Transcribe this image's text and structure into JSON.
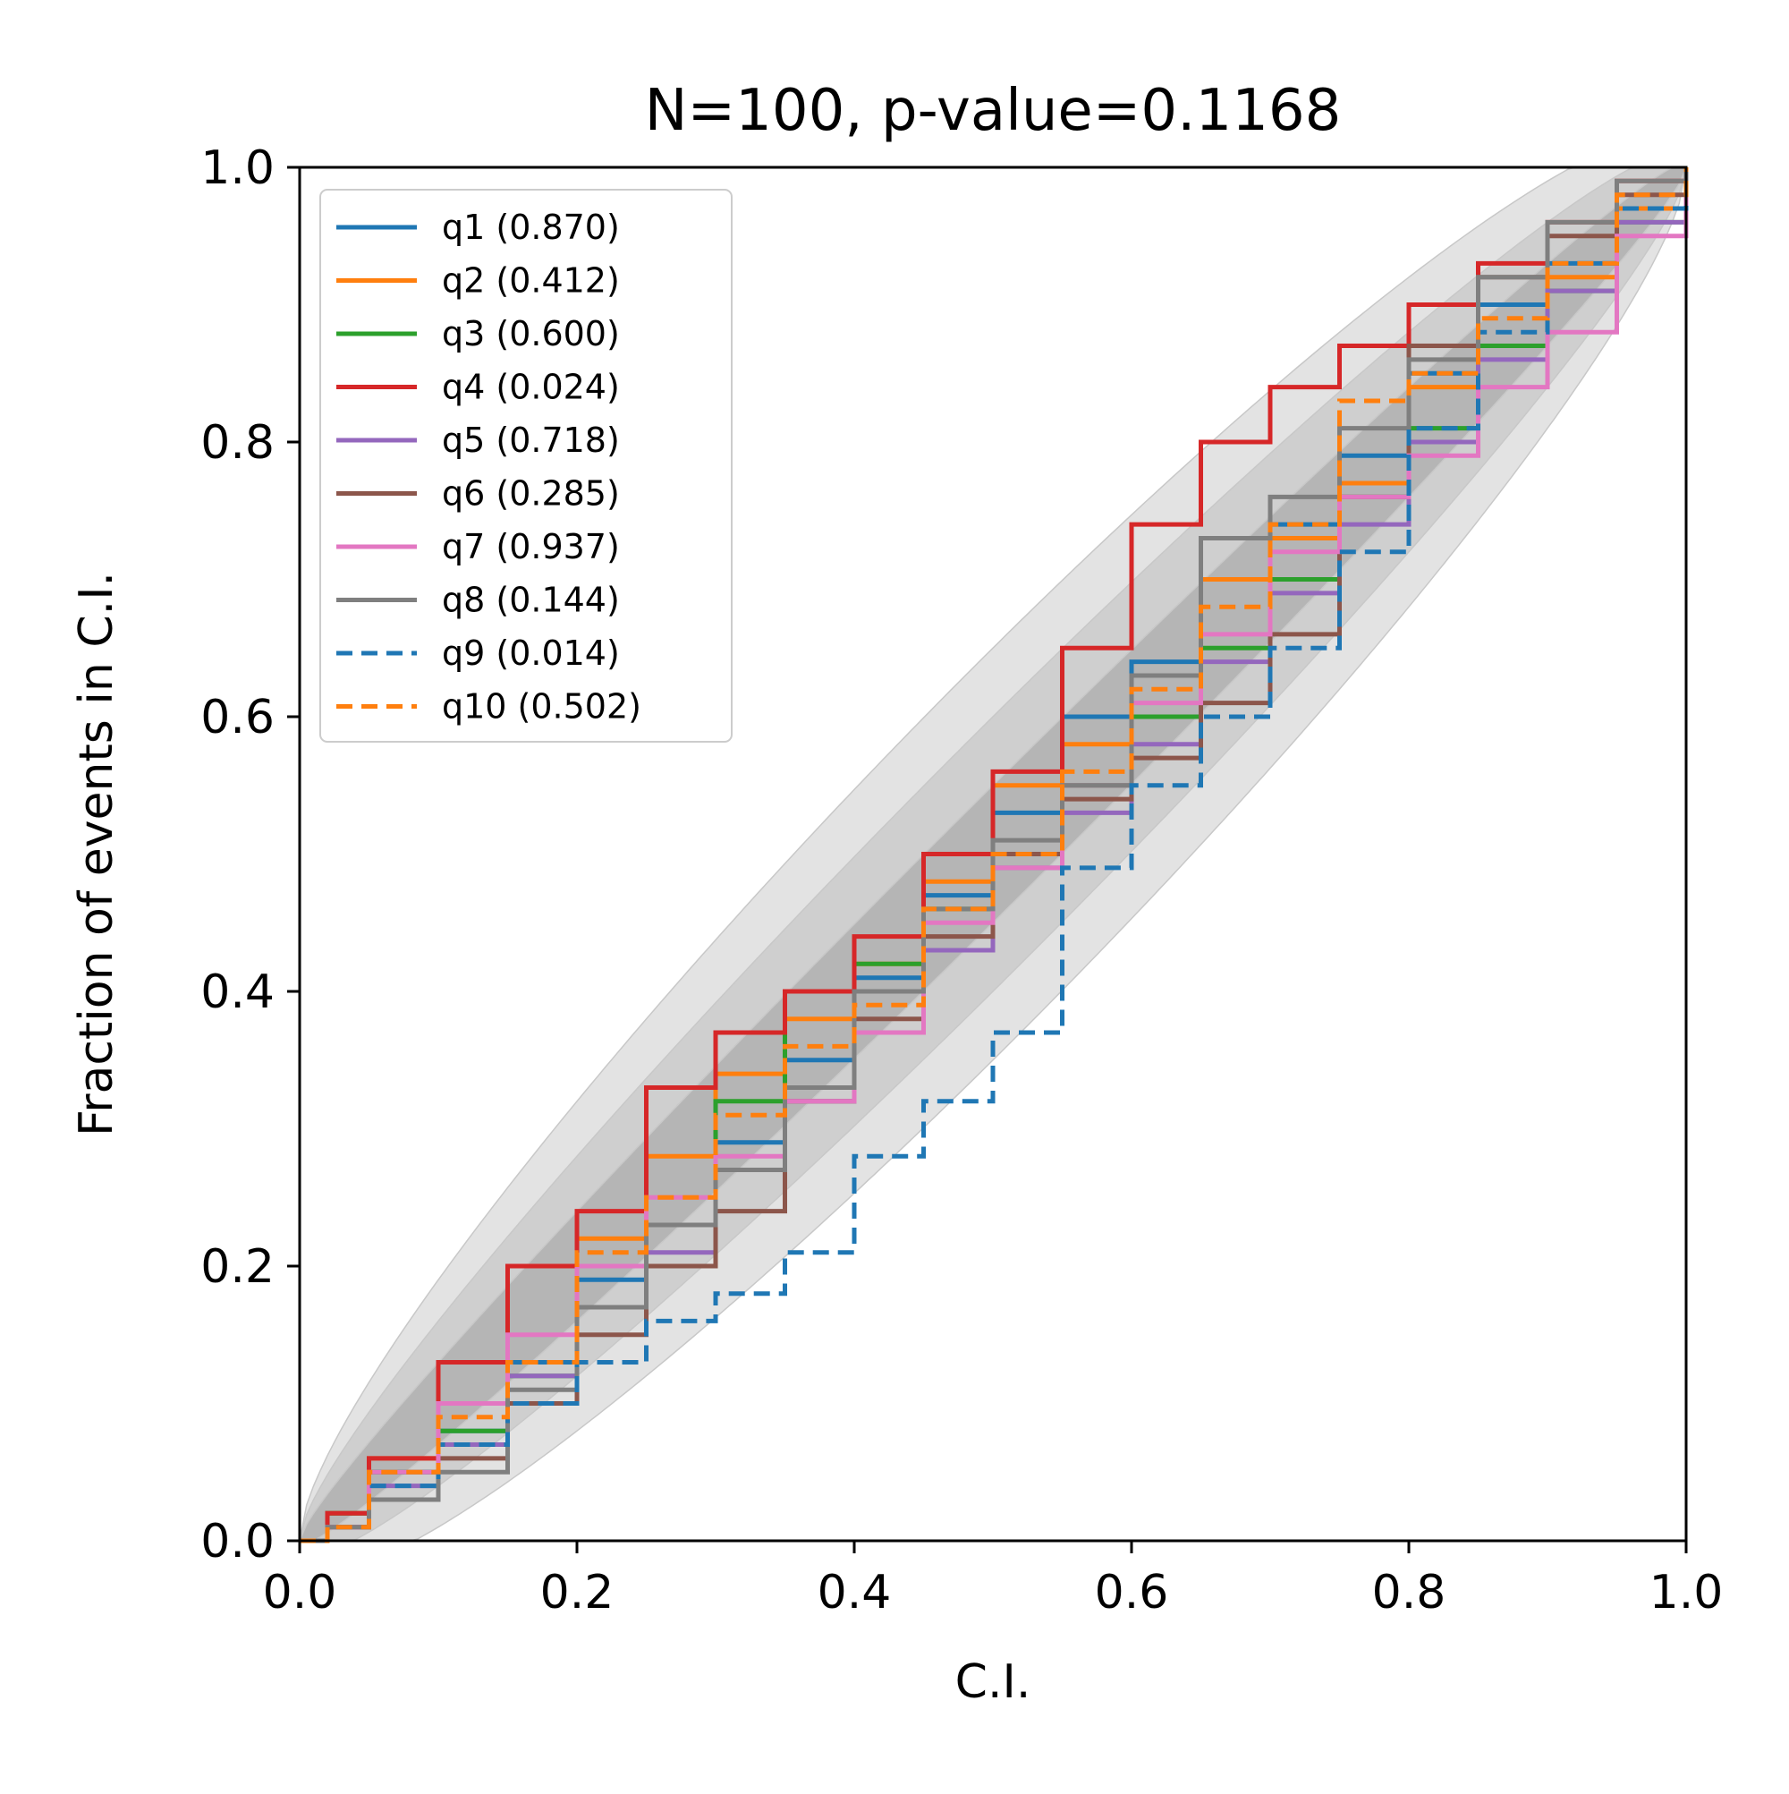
{
  "chart_data": {
    "type": "line",
    "title": "N=100, p-value=0.1168",
    "xlabel": "C.I.",
    "ylabel": "Fraction of events in C.I.",
    "xlim": [
      0.0,
      1.0
    ],
    "ylim": [
      0.0,
      1.0
    ],
    "x_ticks": [
      "0.0",
      "0.2",
      "0.4",
      "0.6",
      "0.8",
      "1.0"
    ],
    "y_ticks": [
      "0.0",
      "0.2",
      "0.4",
      "0.6",
      "0.8",
      "1.0"
    ],
    "grid": false,
    "legend_position": "upper-left",
    "confidence_bands": [
      {
        "sigma": 1,
        "color": "#b5b5b5"
      },
      {
        "sigma": 2,
        "color": "#cfcfcf"
      },
      {
        "sigma": 3,
        "color": "#e3e3e3"
      }
    ],
    "series": [
      {
        "name": "q1 (0.870)",
        "color": "#1f77b4",
        "dash": "solid",
        "x": [
          0,
          0.02,
          0.05,
          0.1,
          0.15,
          0.2,
          0.25,
          0.3,
          0.35,
          0.4,
          0.45,
          0.5,
          0.55,
          0.6,
          0.65,
          0.7,
          0.75,
          0.8,
          0.85,
          0.9,
          0.95,
          1.0
        ],
        "y": [
          0,
          0.02,
          0.05,
          0.08,
          0.13,
          0.19,
          0.23,
          0.29,
          0.35,
          0.41,
          0.47,
          0.53,
          0.6,
          0.64,
          0.7,
          0.74,
          0.79,
          0.85,
          0.9,
          0.93,
          0.97,
          1.0
        ]
      },
      {
        "name": "q2 (0.412)",
        "color": "#ff7f0e",
        "dash": "solid",
        "x": [
          0,
          0.02,
          0.05,
          0.1,
          0.15,
          0.2,
          0.25,
          0.3,
          0.35,
          0.4,
          0.45,
          0.5,
          0.55,
          0.6,
          0.65,
          0.7,
          0.75,
          0.8,
          0.85,
          0.9,
          0.95,
          1.0
        ],
        "y": [
          0,
          0.02,
          0.06,
          0.1,
          0.2,
          0.22,
          0.28,
          0.34,
          0.38,
          0.42,
          0.48,
          0.55,
          0.58,
          0.63,
          0.7,
          0.73,
          0.77,
          0.84,
          0.87,
          0.92,
          0.97,
          1.0
        ]
      },
      {
        "name": "q3 (0.600)",
        "color": "#2ca02c",
        "dash": "solid",
        "x": [
          0,
          0.02,
          0.05,
          0.1,
          0.15,
          0.2,
          0.25,
          0.3,
          0.35,
          0.4,
          0.45,
          0.5,
          0.55,
          0.6,
          0.65,
          0.7,
          0.75,
          0.8,
          0.85,
          0.9,
          0.95,
          1.0
        ],
        "y": [
          0,
          0.02,
          0.05,
          0.08,
          0.12,
          0.17,
          0.23,
          0.32,
          0.4,
          0.42,
          0.46,
          0.5,
          0.55,
          0.6,
          0.65,
          0.7,
          0.76,
          0.81,
          0.87,
          0.91,
          0.96,
          1.0
        ]
      },
      {
        "name": "q4 (0.024)",
        "color": "#d62728",
        "dash": "solid",
        "x": [
          0,
          0.02,
          0.05,
          0.1,
          0.15,
          0.2,
          0.25,
          0.3,
          0.35,
          0.4,
          0.45,
          0.5,
          0.55,
          0.6,
          0.65,
          0.7,
          0.75,
          0.8,
          0.85,
          0.9,
          0.95,
          1.0
        ],
        "y": [
          0,
          0.02,
          0.06,
          0.13,
          0.2,
          0.24,
          0.33,
          0.37,
          0.4,
          0.44,
          0.5,
          0.56,
          0.65,
          0.74,
          0.8,
          0.84,
          0.87,
          0.9,
          0.93,
          0.96,
          0.99,
          1.0
        ]
      },
      {
        "name": "q5 (0.718)",
        "color": "#9467bd",
        "dash": "solid",
        "x": [
          0,
          0.02,
          0.05,
          0.1,
          0.15,
          0.2,
          0.25,
          0.3,
          0.35,
          0.4,
          0.45,
          0.5,
          0.55,
          0.6,
          0.65,
          0.7,
          0.75,
          0.8,
          0.85,
          0.9,
          0.95,
          1.0
        ],
        "y": [
          0,
          0.01,
          0.04,
          0.07,
          0.12,
          0.17,
          0.21,
          0.27,
          0.32,
          0.37,
          0.43,
          0.49,
          0.53,
          0.58,
          0.64,
          0.69,
          0.74,
          0.8,
          0.86,
          0.91,
          0.96,
          1.0
        ]
      },
      {
        "name": "q6 (0.285)",
        "color": "#8c564b",
        "dash": "solid",
        "x": [
          0,
          0.02,
          0.05,
          0.1,
          0.15,
          0.2,
          0.25,
          0.3,
          0.35,
          0.4,
          0.45,
          0.5,
          0.55,
          0.6,
          0.65,
          0.7,
          0.75,
          0.8,
          0.85,
          0.9,
          0.95,
          1.0
        ],
        "y": [
          0,
          0.01,
          0.03,
          0.06,
          0.1,
          0.15,
          0.2,
          0.24,
          0.32,
          0.38,
          0.44,
          0.5,
          0.54,
          0.57,
          0.61,
          0.66,
          0.76,
          0.87,
          0.92,
          0.95,
          0.98,
          1.0
        ]
      },
      {
        "name": "q7 (0.937)",
        "color": "#e377c2",
        "dash": "solid",
        "x": [
          0,
          0.02,
          0.05,
          0.1,
          0.15,
          0.2,
          0.25,
          0.3,
          0.35,
          0.4,
          0.45,
          0.5,
          0.55,
          0.6,
          0.65,
          0.7,
          0.75,
          0.8,
          0.85,
          0.9,
          0.95,
          1.0
        ],
        "y": [
          0,
          0.01,
          0.05,
          0.1,
          0.15,
          0.2,
          0.25,
          0.28,
          0.32,
          0.37,
          0.45,
          0.49,
          0.55,
          0.61,
          0.66,
          0.72,
          0.76,
          0.79,
          0.84,
          0.88,
          0.95,
          1.0
        ]
      },
      {
        "name": "q8 (0.144)",
        "color": "#7f7f7f",
        "dash": "solid",
        "x": [
          0,
          0.02,
          0.05,
          0.1,
          0.15,
          0.2,
          0.25,
          0.3,
          0.35,
          0.4,
          0.45,
          0.5,
          0.55,
          0.6,
          0.65,
          0.7,
          0.75,
          0.8,
          0.85,
          0.9,
          0.95,
          1.0
        ],
        "y": [
          0,
          0.01,
          0.03,
          0.05,
          0.11,
          0.17,
          0.23,
          0.27,
          0.33,
          0.4,
          0.46,
          0.51,
          0.55,
          0.63,
          0.73,
          0.76,
          0.81,
          0.86,
          0.92,
          0.96,
          0.99,
          1.0
        ]
      },
      {
        "name": "q9 (0.014)",
        "color": "#1f77b4",
        "dash": "dashed",
        "x": [
          0,
          0.02,
          0.05,
          0.1,
          0.15,
          0.2,
          0.25,
          0.3,
          0.35,
          0.4,
          0.45,
          0.5,
          0.55,
          0.6,
          0.65,
          0.7,
          0.75,
          0.8,
          0.85,
          0.9,
          0.95,
          1.0
        ],
        "y": [
          0,
          0.01,
          0.04,
          0.07,
          0.1,
          0.13,
          0.16,
          0.18,
          0.21,
          0.28,
          0.32,
          0.37,
          0.49,
          0.55,
          0.6,
          0.65,
          0.72,
          0.81,
          0.88,
          0.93,
          0.97,
          1.0
        ]
      },
      {
        "name": "q10 (0.502)",
        "color": "#ff7f0e",
        "dash": "dashed",
        "x": [
          0,
          0.02,
          0.05,
          0.1,
          0.15,
          0.2,
          0.25,
          0.3,
          0.35,
          0.4,
          0.45,
          0.5,
          0.55,
          0.6,
          0.65,
          0.7,
          0.75,
          0.8,
          0.85,
          0.9,
          0.95,
          1.0
        ],
        "y": [
          0,
          0.01,
          0.05,
          0.09,
          0.13,
          0.21,
          0.25,
          0.31,
          0.36,
          0.39,
          0.46,
          0.5,
          0.56,
          0.62,
          0.68,
          0.74,
          0.83,
          0.85,
          0.89,
          0.93,
          0.98,
          1.0
        ]
      }
    ]
  }
}
